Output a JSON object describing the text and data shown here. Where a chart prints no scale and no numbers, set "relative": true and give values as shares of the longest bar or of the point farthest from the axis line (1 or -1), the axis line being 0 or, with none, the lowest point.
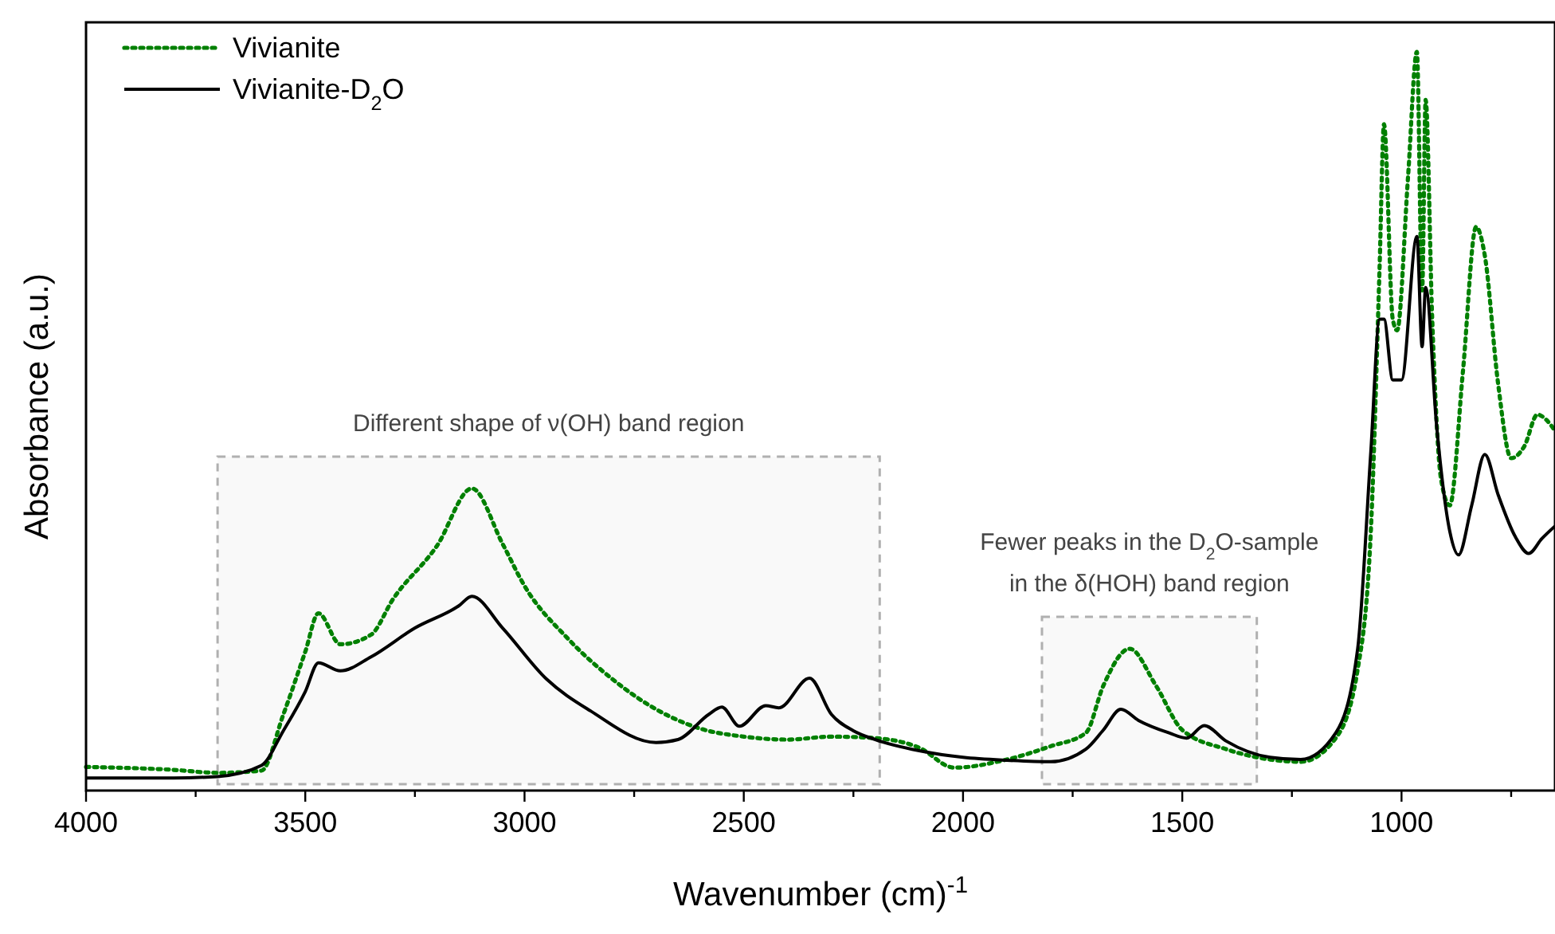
{
  "chart_data": {
    "type": "line",
    "xlabel": "Wavenumber (cm)$^{-1}$",
    "ylabel": "Absorbance (a.u.)",
    "relative": true,
    "xlim": [
      4000,
      650
    ],
    "xticks": [
      4000,
      {
        "value": 3750,
        "label": null
      },
      3500,
      {
        "value": 3250,
        "label": null
      },
      3000,
      {
        "value": 2750,
        "label": null
      },
      2500,
      {
        "value": 2250,
        "label": null
      },
      2000,
      {
        "value": 1750,
        "label": null
      },
      1500,
      {
        "value": 1250,
        "label": null
      },
      1000,
      {
        "value": 750,
        "label": null
      }
    ],
    "grid": false,
    "legend": "top left",
    "series": [
      {
        "name": "Vivianite",
        "color": "#008000",
        "line_style": "dotted",
        "x": [
          4000,
          3800,
          3700,
          3600,
          3550,
          3500,
          3470,
          3420,
          3350,
          3300,
          3200,
          3120,
          3050,
          3000,
          2900,
          2800,
          2700,
          2600,
          2500,
          2400,
          2300,
          2200,
          2100,
          2020,
          1900,
          1800,
          1720,
          1680,
          1620,
          1560,
          1500,
          1400,
          1300,
          1230,
          1150,
          1100,
          1070,
          1050,
          1040,
          1020,
          1010,
          985,
          965,
          953,
          945,
          930,
          910,
          890,
          860,
          830,
          810,
          780,
          750,
          720,
          690,
          670,
          650
        ],
        "values": [
          0.032,
          0.028,
          0.024,
          0.027,
          0.103,
          0.188,
          0.24,
          0.198,
          0.211,
          0.259,
          0.331,
          0.409,
          0.334,
          0.277,
          0.205,
          0.151,
          0.11,
          0.084,
          0.073,
          0.069,
          0.073,
          0.071,
          0.058,
          0.031,
          0.042,
          0.06,
          0.078,
          0.142,
          0.192,
          0.142,
          0.082,
          0.056,
          0.042,
          0.039,
          0.071,
          0.164,
          0.351,
          0.709,
          0.902,
          0.638,
          0.623,
          0.832,
          1.0,
          0.677,
          0.935,
          0.638,
          0.422,
          0.386,
          0.567,
          0.763,
          0.724,
          0.552,
          0.45,
          0.466,
          0.509,
          0.502,
          0.487
        ]
      },
      {
        "name": "Vivianite-D$_{2}$O",
        "color": "#000000",
        "line_style": "solid",
        "x": [
          4000,
          3800,
          3700,
          3600,
          3550,
          3500,
          3470,
          3420,
          3350,
          3250,
          3150,
          3120,
          3050,
          2950,
          2850,
          2700,
          2650,
          2580,
          2550,
          2510,
          2450,
          2420,
          2350,
          2300,
          2250,
          2200,
          2100,
          2000,
          1900,
          1800,
          1720,
          1680,
          1640,
          1600,
          1530,
          1490,
          1450,
          1400,
          1300,
          1230,
          1150,
          1100,
          1070,
          1050,
          1040,
          1020,
          1000,
          965,
          953,
          945,
          920,
          890,
          870,
          840,
          810,
          780,
          740,
          710,
          680,
          650
        ],
        "values": [
          0.017,
          0.017,
          0.019,
          0.034,
          0.081,
          0.134,
          0.173,
          0.162,
          0.181,
          0.22,
          0.25,
          0.263,
          0.22,
          0.151,
          0.108,
          0.065,
          0.069,
          0.103,
          0.113,
          0.087,
          0.115,
          0.112,
          0.152,
          0.103,
          0.081,
          0.069,
          0.054,
          0.045,
          0.041,
          0.039,
          0.056,
          0.082,
          0.11,
          0.095,
          0.078,
          0.071,
          0.088,
          0.067,
          0.045,
          0.042,
          0.078,
          0.192,
          0.459,
          0.638,
          0.638,
          0.556,
          0.556,
          0.75,
          0.601,
          0.681,
          0.494,
          0.351,
          0.319,
          0.386,
          0.455,
          0.401,
          0.343,
          0.321,
          0.341,
          0.358
        ]
      }
    ],
    "bands": [
      {
        "axis": "x",
        "from": 3700,
        "to": 2190,
        "label": "Different shape of ν(OH) band region",
        "color": "#b0b0b0"
      },
      {
        "axis": "x",
        "from": 1820,
        "to": 1330,
        "label": "Fewer peaks in the D$_{2}$O-sample\nin the δ(HOH) band region",
        "color": "#b0b0b0"
      }
    ]
  }
}
